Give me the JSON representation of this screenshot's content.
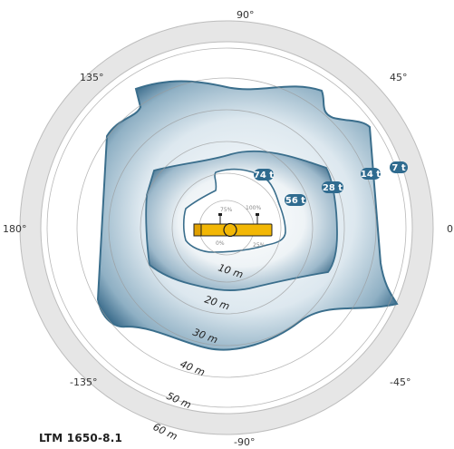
{
  "title": "LTM 1650-8.1",
  "angles": {
    "a90": "90°",
    "a45": "45°",
    "a135": "135°",
    "a180": "180°",
    "a0": "0°",
    "am45": "-45°",
    "am135": "-135°",
    "am90": "-90°"
  },
  "capacities": [
    "74 t",
    "56 t",
    "28 t",
    "14 t",
    "7 t"
  ],
  "distances": [
    "10 m",
    "20 m",
    "30 m",
    "40 m",
    "50 m",
    "60 m"
  ],
  "percents": [
    "75%",
    "100%",
    "0%",
    "25%"
  ],
  "colors": {
    "zone_fill_edge": "#2f5f7f",
    "zone_fill_mid": "#9cb8cc",
    "zone_stroke": "#3a6e8c",
    "ring": "#d9d9d9",
    "badge": "#2f6b8f",
    "carrier": "#f2b705"
  },
  "icons": [
    "crane-carrier-icon"
  ]
}
